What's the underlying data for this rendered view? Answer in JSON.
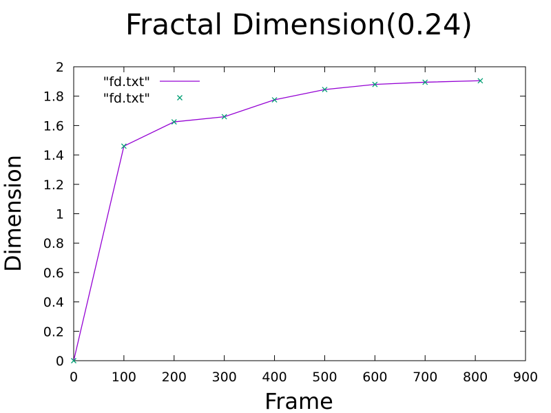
{
  "chart_data": {
    "type": "line",
    "title": "Fractal Dimension(0.24)",
    "xlabel": "Frame",
    "ylabel": "Dimension",
    "xlim": [
      0,
      900
    ],
    "ylim": [
      0,
      2
    ],
    "x_ticks": [
      "0",
      "100",
      "200",
      "300",
      "400",
      "500",
      "600",
      "700",
      "800",
      "900"
    ],
    "y_ticks": [
      "0",
      "0.2",
      "0.4",
      "0.6",
      "0.8",
      "1",
      "1.2",
      "1.4",
      "1.6",
      "1.8",
      "2"
    ],
    "grid": false,
    "legend_position": "top-left",
    "series": [
      {
        "name": "\"fd.txt\"",
        "style": "line",
        "color": "#9400d3",
        "x": [
          0,
          100,
          200,
          300,
          400,
          500,
          600,
          700,
          810
        ],
        "y": [
          0,
          1.46,
          1.625,
          1.66,
          1.775,
          1.845,
          1.88,
          1.895,
          1.905
        ]
      },
      {
        "name": "\"fd.txt\"",
        "style": "points",
        "marker": "x",
        "color": "#009e73",
        "x": [
          0,
          100,
          200,
          300,
          400,
          500,
          600,
          700,
          810
        ],
        "y": [
          0,
          1.46,
          1.625,
          1.66,
          1.775,
          1.845,
          1.88,
          1.895,
          1.905
        ]
      }
    ]
  }
}
